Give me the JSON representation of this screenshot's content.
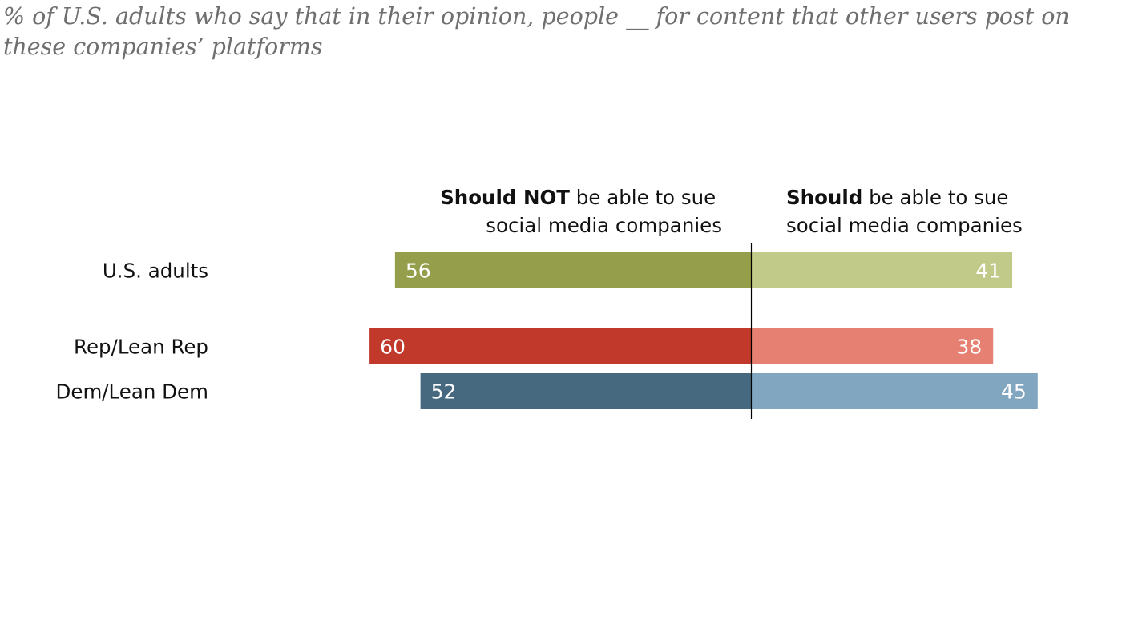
{
  "subtitle": "% of U.S. adults who say that in their opinion, people __ for content that other users post on these companies’ platforms",
  "chart_data": {
    "type": "bar",
    "orientation": "diverging-horizontal",
    "categories": [
      "U.S. adults",
      "Rep/Lean Rep",
      "Dem/Lean Dem"
    ],
    "series": [
      {
        "name": "Should NOT be able to sue social media companies",
        "header_bold": "Should NOT",
        "header_line1_rest": " be able to sue",
        "header_line2": "social media companies",
        "side": "left",
        "values": [
          56,
          60,
          52
        ],
        "colors": [
          "#959e4a",
          "#c0392b",
          "#46697f"
        ]
      },
      {
        "name": "Should be able to sue social media companies",
        "header_bold": "Should",
        "header_line1_rest": " be able to sue",
        "header_line2": "social media companies",
        "side": "right",
        "values": [
          41,
          38,
          45
        ],
        "colors": [
          "#c1ca89",
          "#e58072",
          "#81a6c0"
        ]
      }
    ],
    "xlim": [
      -60,
      45
    ],
    "title": "",
    "xlabel": "",
    "ylabel": "",
    "grid": false,
    "legend": "column-headers-top"
  }
}
